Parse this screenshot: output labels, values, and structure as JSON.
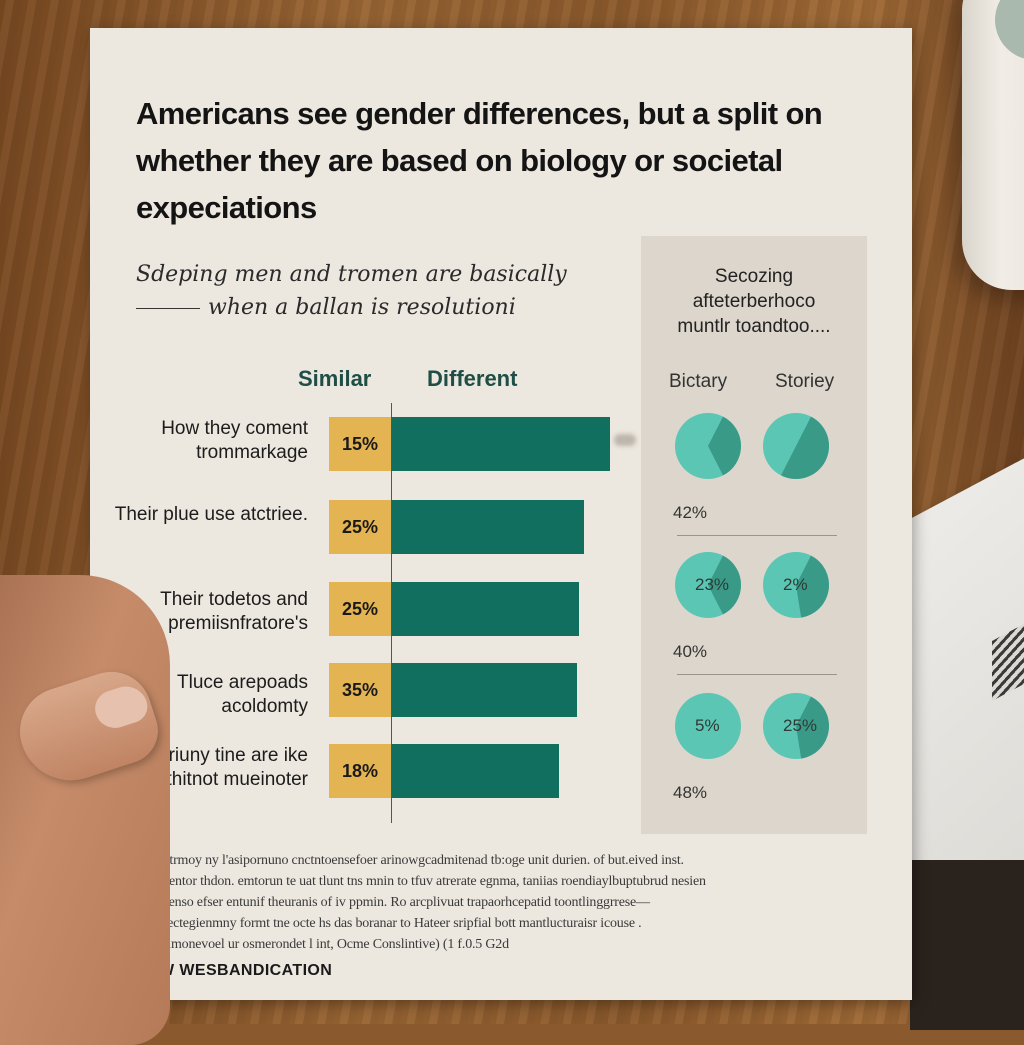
{
  "headline": "Americans see gender differences, but a split on whether they are based on biology or societal expeciations",
  "subtitle": {
    "line1": "Sdeping men and tromen are basically",
    "line2": "when a ballan is resolutioni"
  },
  "columns": {
    "similar": "Similar",
    "different": "Different"
  },
  "panel": {
    "title_lines": [
      "Secozing",
      "afteterberhoco",
      "muntlr toandtoo...."
    ],
    "col_biology": "Bictary",
    "col_society": "Storiey"
  },
  "chart_data": [
    {
      "type": "bar",
      "orientation": "horizontal-stacked",
      "title": "Americans see gender differences, but a split on whether they are based on biology or societal expeciations",
      "categories": [
        "How they coment trommarkage",
        "Their plue use atctriee.",
        "Their todetos and premiisnfratore's",
        "Tluce arepoads acoldomty",
        "Their jriuny tine are ike thitnot mueinoter"
      ],
      "series": [
        {
          "name": "Similar",
          "values": [
            15,
            25,
            25,
            35,
            18
          ],
          "labels": [
            "15%",
            "25%",
            "25%",
            "35%",
            "18%"
          ],
          "color": "#e3b451"
        },
        {
          "name": "Different",
          "values": [
            85,
            75,
            73,
            72,
            65
          ],
          "color": "#106f5f",
          "note": "unlabeled; estimated from bar length"
        }
      ],
      "xlabel": "",
      "ylabel": "",
      "xlim": [
        0,
        100
      ],
      "legend": "top"
    },
    {
      "type": "pie",
      "title": "Secozing afteterberhoco muntlr toandtoo....",
      "columns": [
        "Bictary",
        "Storiey"
      ],
      "rows": [
        {
          "row_label": "42%",
          "biology_slice": 0.35,
          "biology_text": "",
          "society_slice": 0.5,
          "society_text": ""
        },
        {
          "row_label": "40%",
          "biology_slice": 0.35,
          "biology_text": "23%",
          "society_slice": 0.4,
          "society_text": "2%"
        },
        {
          "row_label": "48%",
          "biology_slice": 0.0,
          "biology_text": "5%",
          "society_slice": 0.4,
          "society_text": "25%"
        }
      ],
      "colors": {
        "light": "#5cc6b4",
        "dark": "#3a9a88"
      }
    }
  ],
  "footnote": [
    "Edcrr trmoy ny l'asipornuno cnctntoensefoer arinowgcadmitenad tb:oge unit  durien. of but.eived inst.",
    "Glralsentor thdon. emtorun te uat tlunt tns mnin to tfuv atrerate egnma, taniias roendiaylbuptubrud nesien",
    "Bict benso efser entunif theuranis of iv ppmin. Ro arcplivuat trapaorhcepatid toontlinggrrese—",
    "tion vectegienmny formt tne octe hs das boranar to Hateer sripfial bott mantlucturaisr icouse .",
    "Hya simonevoel ur osmerondet  l int, Ocme Conslintive) (1 f.0.5 G2d"
  ],
  "brand": "NEW WESBANDICATION"
}
